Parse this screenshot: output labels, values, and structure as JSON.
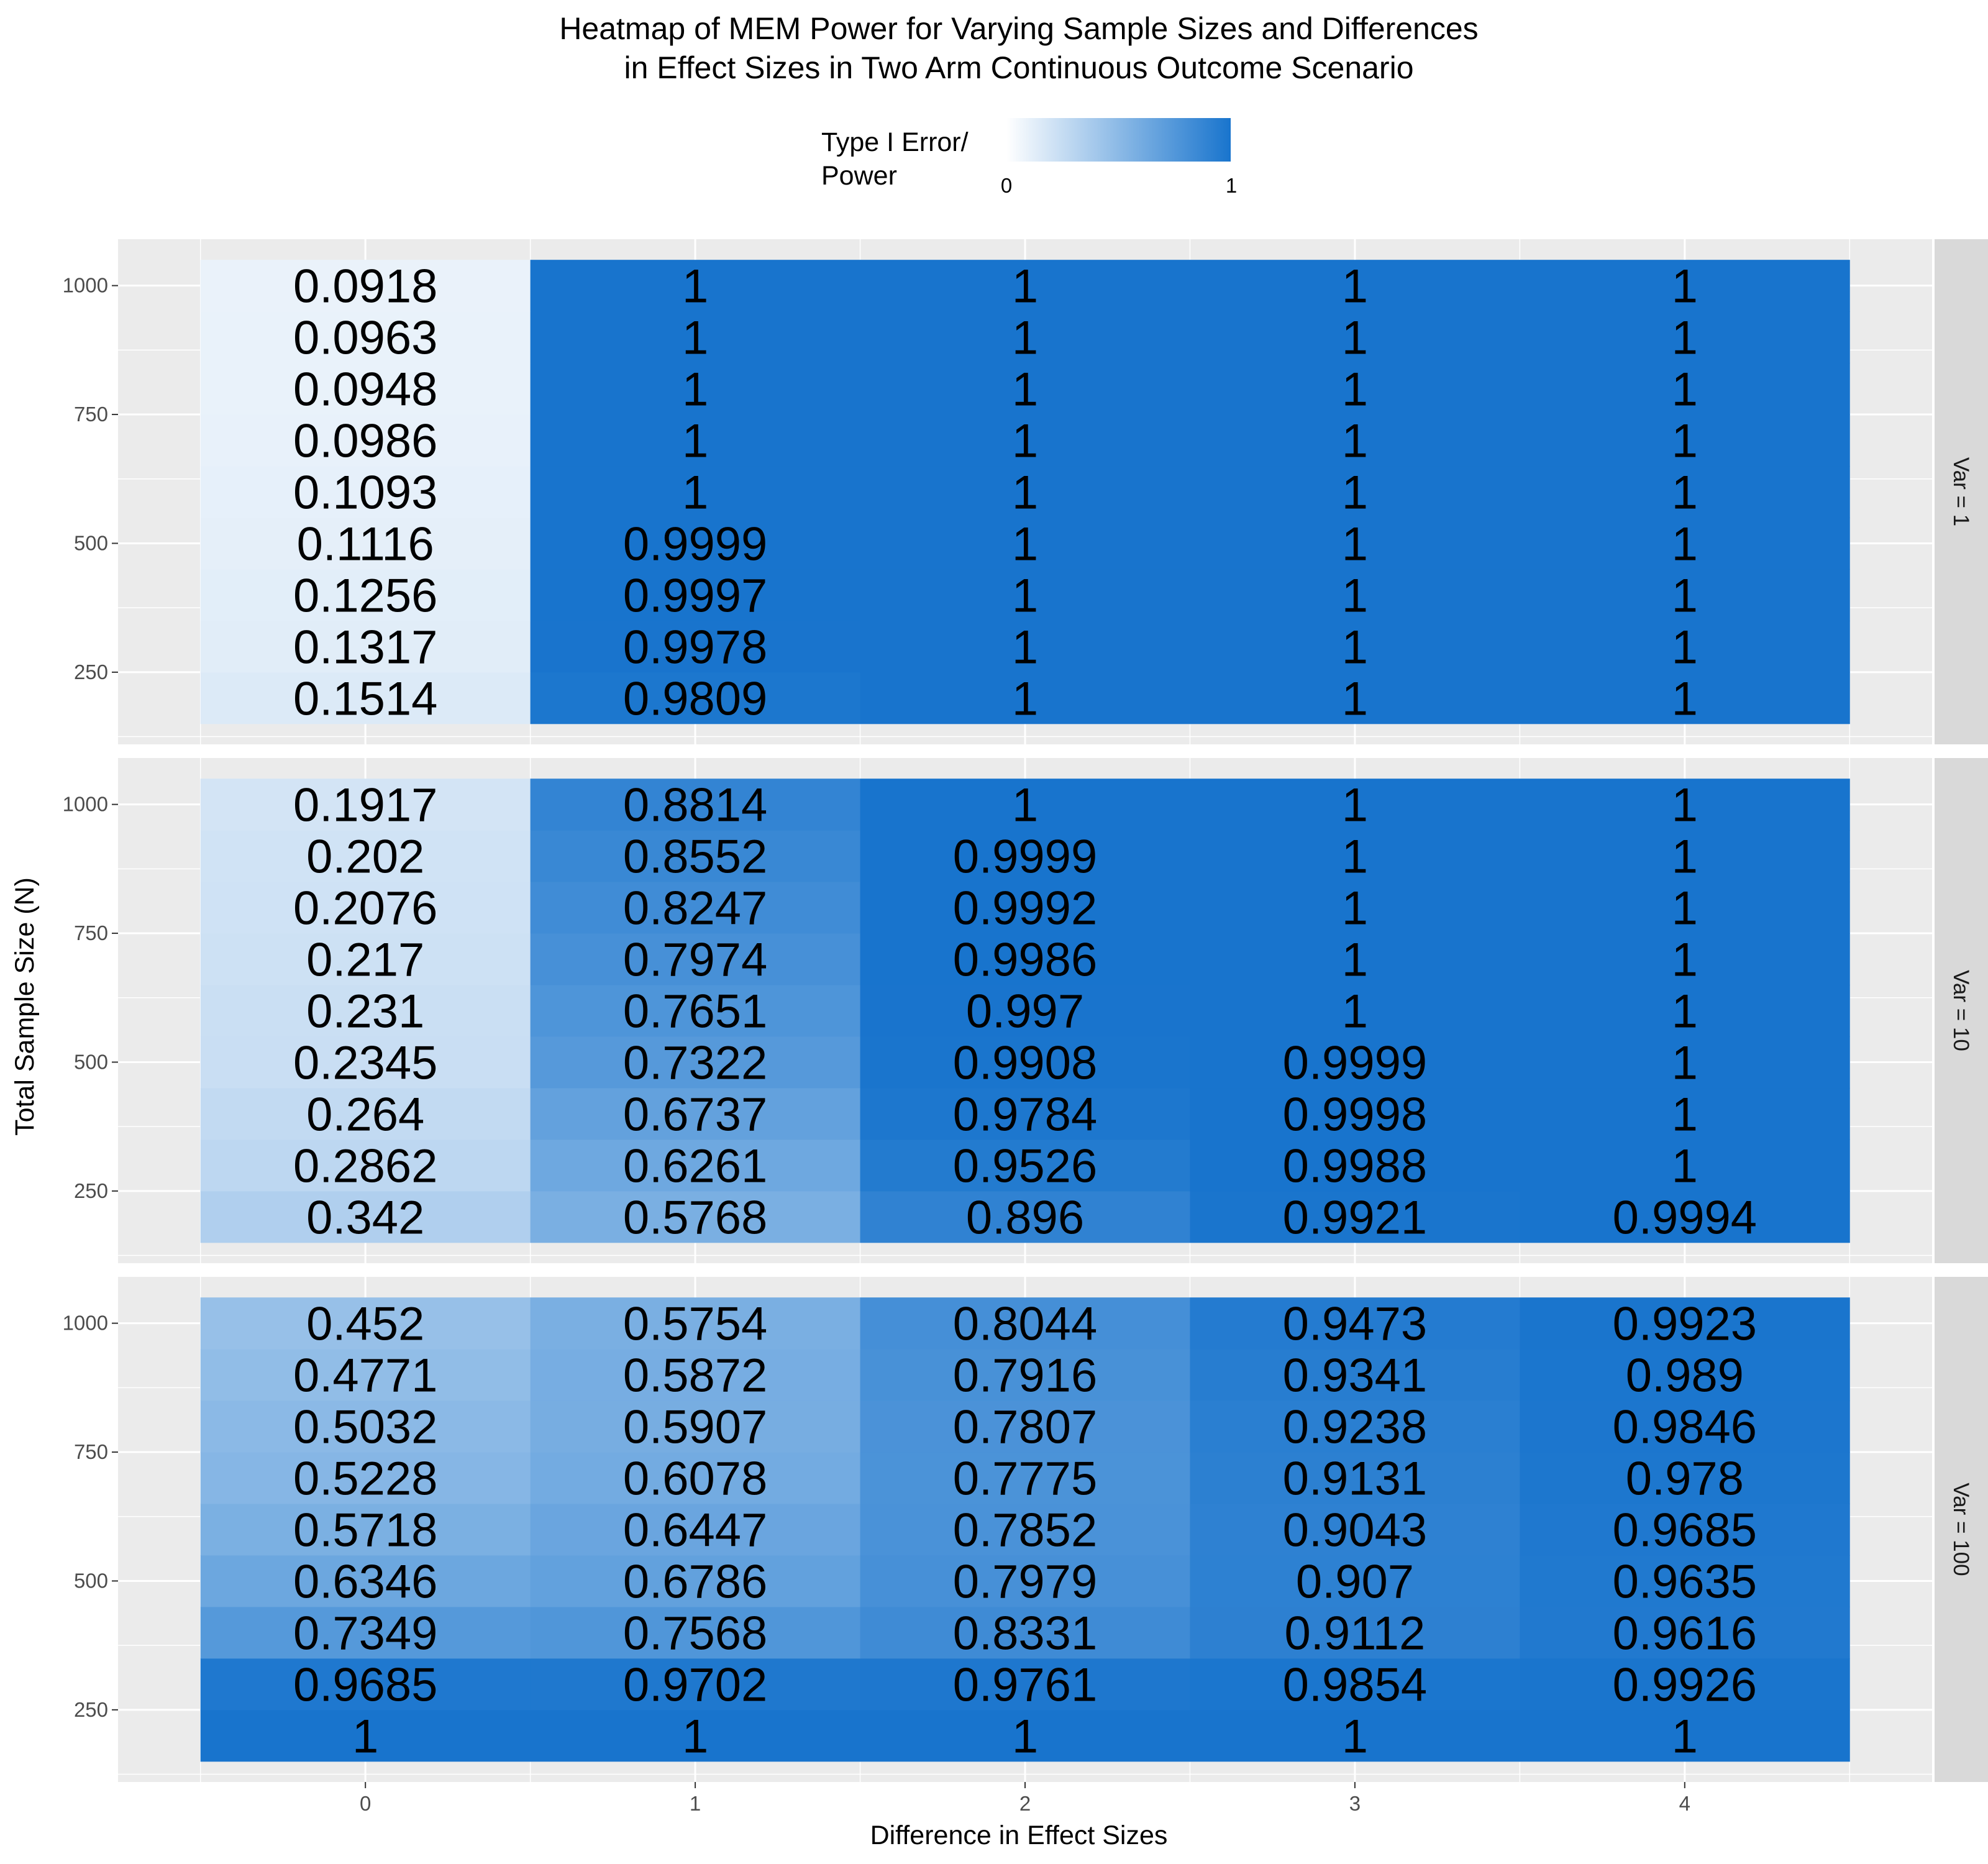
{
  "chart_data": {
    "type": "heatmap",
    "title": [
      "Heatmap of MEM Power for Varying Sample Sizes and Differences",
      "in Effect Sizes in Two Arm Continuous Outcome Scenario"
    ],
    "xlabel": "Difference in Effect Sizes",
    "ylabel": "Total Sample Size (N)",
    "x": [
      0,
      1,
      2,
      3,
      4
    ],
    "y": [
      200,
      300,
      400,
      500,
      600,
      700,
      800,
      900,
      1000
    ],
    "x_ticks": [
      0,
      1,
      2,
      3,
      4
    ],
    "y_ticks": [
      250,
      500,
      750,
      1000
    ],
    "ylim": [
      150,
      1050
    ],
    "legend": {
      "title": [
        "Type I Error/",
        "Power"
      ],
      "placement": "top",
      "min": 0,
      "max": 1,
      "tick_labels": [
        "0",
        "1"
      ],
      "color_low": "#ffffff",
      "color_high": "#1874cd"
    },
    "facets": [
      {
        "label": "Var = 1",
        "values": [
          [
            0.1514,
            0.9809,
            1,
            1,
            1
          ],
          [
            0.1317,
            0.9978,
            1,
            1,
            1
          ],
          [
            0.1256,
            0.9997,
            1,
            1,
            1
          ],
          [
            0.1116,
            0.9999,
            1,
            1,
            1
          ],
          [
            0.1093,
            1,
            1,
            1,
            1
          ],
          [
            0.0986,
            1,
            1,
            1,
            1
          ],
          [
            0.0948,
            1,
            1,
            1,
            1
          ],
          [
            0.0963,
            1,
            1,
            1,
            1
          ],
          [
            0.0918,
            1,
            1,
            1,
            1
          ]
        ]
      },
      {
        "label": "Var = 10",
        "values": [
          [
            0.342,
            0.5768,
            0.896,
            0.9921,
            0.9994
          ],
          [
            0.2862,
            0.6261,
            0.9526,
            0.9988,
            1
          ],
          [
            0.264,
            0.6737,
            0.9784,
            0.9998,
            1
          ],
          [
            0.2345,
            0.7322,
            0.9908,
            0.9999,
            1
          ],
          [
            0.231,
            0.7651,
            0.997,
            1,
            1
          ],
          [
            0.217,
            0.7974,
            0.9986,
            1,
            1
          ],
          [
            0.2076,
            0.8247,
            0.9992,
            1,
            1
          ],
          [
            0.202,
            0.8552,
            0.9999,
            1,
            1
          ],
          [
            0.1917,
            0.8814,
            1,
            1,
            1
          ]
        ]
      },
      {
        "label": "Var = 100",
        "values": [
          [
            1,
            1,
            1,
            1,
            1
          ],
          [
            0.9685,
            0.9702,
            0.9761,
            0.9854,
            0.9926
          ],
          [
            0.7349,
            0.7568,
            0.8331,
            0.9112,
            0.9616
          ],
          [
            0.6346,
            0.6786,
            0.7979,
            0.907,
            0.9635
          ],
          [
            0.5718,
            0.6447,
            0.7852,
            0.9043,
            0.9685
          ],
          [
            0.5228,
            0.6078,
            0.7775,
            0.9131,
            0.978
          ],
          [
            0.5032,
            0.5907,
            0.7807,
            0.9238,
            0.9846
          ],
          [
            0.4771,
            0.5872,
            0.7916,
            0.9341,
            0.989
          ],
          [
            0.452,
            0.5754,
            0.8044,
            0.9473,
            0.9923
          ]
        ]
      }
    ],
    "grid": true,
    "panel_background": "#ebebeb",
    "strip_background": "#d9d9d9"
  }
}
